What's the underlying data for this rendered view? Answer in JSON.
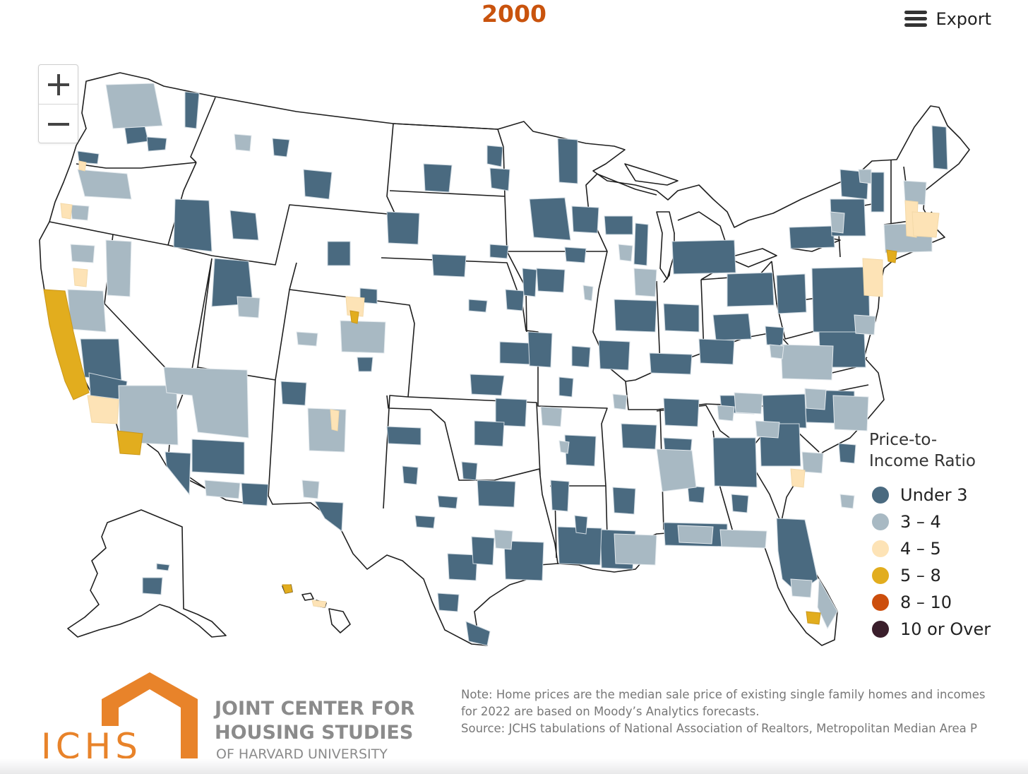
{
  "header": {
    "year": "2000",
    "export_label": "Export",
    "export_icon": "hamburger-menu-icon"
  },
  "zoom": {
    "in_icon": "plus-icon",
    "out_icon": "minus-icon"
  },
  "legend": {
    "title_line1": "Price-to-",
    "title_line2": "Income Ratio",
    "items": [
      {
        "label": "Under 3",
        "color": "#4a6a80"
      },
      {
        "label": "3 – 4",
        "color": "#a8b9c3"
      },
      {
        "label": "4 – 5",
        "color": "#fde3b6"
      },
      {
        "label": "5 – 8",
        "color": "#e2ad1e"
      },
      {
        "label": "8 – 10",
        "color": "#cc4e0c"
      },
      {
        "label": "10 or Over",
        "color": "#3a1e2b"
      }
    ]
  },
  "map": {
    "colors": {
      "land": "#ffffff",
      "border": "#1f1f1f",
      "under3": "#4a6a80",
      "r3to4": "#a8b9c3",
      "r4to5": "#fde3b6",
      "r5to8": "#e2ad1e"
    }
  },
  "logo": {
    "mark": "JCHS",
    "line1": "JOINT CENTER FOR",
    "line2": "HOUSING STUDIES",
    "line3": "OF HARVARD UNIVERSITY",
    "orange": "#e8832a",
    "gray": "#8b8b8b"
  },
  "note": {
    "line1": "Note: Home prices are the median sale price of existing single family homes and incomes",
    "line2": "for 2022 are based on Moody’s Analytics forecasts.",
    "line3": "Source: JCHS tabulations of National Association of Realtors, Metropolitan Median Area P"
  }
}
